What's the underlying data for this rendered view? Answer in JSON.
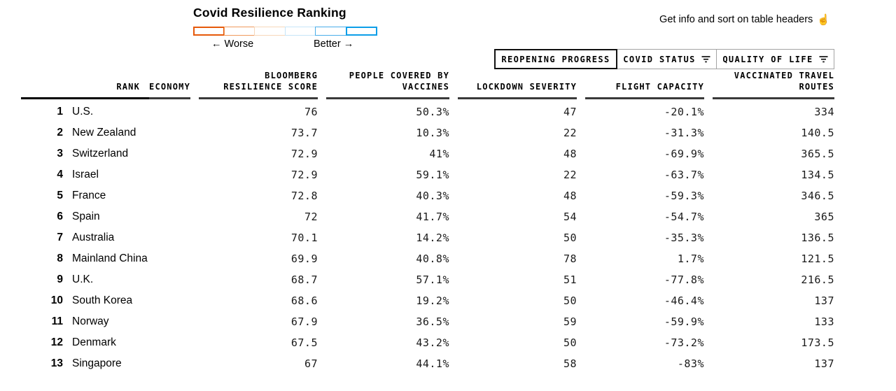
{
  "page": {
    "title": "Covid Resilience Ranking",
    "hint": "Get info and sort on table headers",
    "hint_icon": "☝",
    "legend": {
      "worse_label": "← Worse",
      "better_label": "Better →",
      "swatch_colors": [
        "#e6590a",
        "#f09a5c",
        "#f7d7ba",
        "#c6e5f8",
        "#49ade9",
        "#0c9ee8"
      ]
    }
  },
  "tabs": [
    {
      "label": "REOPENING PROGRESS",
      "active": true,
      "has_filter_icon": false
    },
    {
      "label": "COVID STATUS",
      "active": false,
      "has_filter_icon": true
    },
    {
      "label": "QUALITY OF LIFE",
      "active": false,
      "has_filter_icon": true
    }
  ],
  "table": {
    "headers": {
      "rank": "RANK",
      "economy": "ECONOMY",
      "score": "BLOOMBERG\nRESILIENCE SCORE",
      "vaccines": "PEOPLE COVERED BY\nVACCINES",
      "lockdown": "LOCKDOWN SEVERITY",
      "flight": "FLIGHT CAPACITY",
      "routes": "VACCINATED TRAVEL\nROUTES"
    },
    "rows": [
      {
        "rank": "1",
        "economy": "U.S.",
        "score": "76",
        "vaccines": "50.3%",
        "lockdown": "47",
        "flight": "-20.1%",
        "routes": "334"
      },
      {
        "rank": "2",
        "economy": "New Zealand",
        "score": "73.7",
        "vaccines": "10.3%",
        "lockdown": "22",
        "flight": "-31.3%",
        "routes": "140.5"
      },
      {
        "rank": "3",
        "economy": "Switzerland",
        "score": "72.9",
        "vaccines": "41%",
        "lockdown": "48",
        "flight": "-69.9%",
        "routes": "365.5"
      },
      {
        "rank": "4",
        "economy": "Israel",
        "score": "72.9",
        "vaccines": "59.1%",
        "lockdown": "22",
        "flight": "-63.7%",
        "routes": "134.5"
      },
      {
        "rank": "5",
        "economy": "France",
        "score": "72.8",
        "vaccines": "40.3%",
        "lockdown": "48",
        "flight": "-59.3%",
        "routes": "346.5"
      },
      {
        "rank": "6",
        "economy": "Spain",
        "score": "72",
        "vaccines": "41.7%",
        "lockdown": "54",
        "flight": "-54.7%",
        "routes": "365"
      },
      {
        "rank": "7",
        "economy": "Australia",
        "score": "70.1",
        "vaccines": "14.2%",
        "lockdown": "50",
        "flight": "-35.3%",
        "routes": "136.5"
      },
      {
        "rank": "8",
        "economy": "Mainland China",
        "score": "69.9",
        "vaccines": "40.8%",
        "lockdown": "78",
        "flight": "1.7%",
        "routes": "121.5"
      },
      {
        "rank": "9",
        "economy": "U.K.",
        "score": "68.7",
        "vaccines": "57.1%",
        "lockdown": "51",
        "flight": "-77.8%",
        "routes": "216.5"
      },
      {
        "rank": "10",
        "economy": "South Korea",
        "score": "68.6",
        "vaccines": "19.2%",
        "lockdown": "50",
        "flight": "-46.4%",
        "routes": "137"
      },
      {
        "rank": "11",
        "economy": "Norway",
        "score": "67.9",
        "vaccines": "36.5%",
        "lockdown": "59",
        "flight": "-59.9%",
        "routes": "133"
      },
      {
        "rank": "12",
        "economy": "Denmark",
        "score": "67.5",
        "vaccines": "43.2%",
        "lockdown": "50",
        "flight": "-73.2%",
        "routes": "173.5"
      },
      {
        "rank": "13",
        "economy": "Singapore",
        "score": "67",
        "vaccines": "44.1%",
        "lockdown": "58",
        "flight": "-83%",
        "routes": "137"
      }
    ]
  },
  "chart_data": {
    "type": "table",
    "title": "Covid Resilience Ranking",
    "columns": [
      "Rank",
      "Economy",
      "Bloomberg Resilience Score",
      "People Covered by Vaccines",
      "Lockdown Severity",
      "Flight Capacity",
      "Vaccinated Travel Routes"
    ],
    "rows": [
      [
        1,
        "U.S.",
        76,
        "50.3%",
        47,
        "-20.1%",
        334
      ],
      [
        2,
        "New Zealand",
        73.7,
        "10.3%",
        22,
        "-31.3%",
        140.5
      ],
      [
        3,
        "Switzerland",
        72.9,
        "41%",
        48,
        "-69.9%",
        365.5
      ],
      [
        4,
        "Israel",
        72.9,
        "59.1%",
        22,
        "-63.7%",
        134.5
      ],
      [
        5,
        "France",
        72.8,
        "40.3%",
        48,
        "-59.3%",
        346.5
      ],
      [
        6,
        "Spain",
        72,
        "41.7%",
        54,
        "-54.7%",
        365
      ],
      [
        7,
        "Australia",
        70.1,
        "14.2%",
        50,
        "-35.3%",
        136.5
      ],
      [
        8,
        "Mainland China",
        69.9,
        "40.8%",
        78,
        "1.7%",
        121.5
      ],
      [
        9,
        "U.K.",
        68.7,
        "57.1%",
        51,
        "-77.8%",
        216.5
      ],
      [
        10,
        "South Korea",
        68.6,
        "19.2%",
        50,
        "-46.4%",
        137
      ],
      [
        11,
        "Norway",
        67.9,
        "36.5%",
        59,
        "-59.9%",
        133
      ],
      [
        12,
        "Denmark",
        67.5,
        "43.2%",
        50,
        "-73.2%",
        173.5
      ],
      [
        13,
        "Singapore",
        67,
        "44.1%",
        58,
        "-83%",
        137
      ]
    ],
    "legend": {
      "scale_labels": [
        "Worse",
        "Better"
      ],
      "scale_colors": [
        "#e6590a",
        "#f09a5c",
        "#f7d7ba",
        "#c6e5f8",
        "#49ade9",
        "#0c9ee8"
      ]
    }
  }
}
